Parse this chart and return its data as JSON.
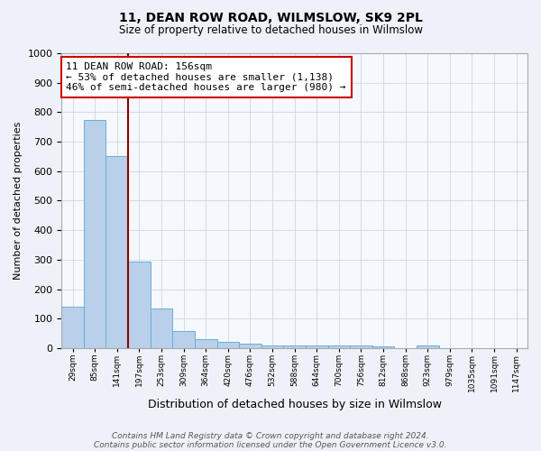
{
  "title": "11, DEAN ROW ROAD, WILMSLOW, SK9 2PL",
  "subtitle": "Size of property relative to detached houses in Wilmslow",
  "xlabel": "Distribution of detached houses by size in Wilmslow",
  "ylabel": "Number of detached properties",
  "footer1": "Contains HM Land Registry data © Crown copyright and database right 2024.",
  "footer2": "Contains public sector information licensed under the Open Government Licence v3.0.",
  "categories": [
    "29sqm",
    "85sqm",
    "141sqm",
    "197sqm",
    "253sqm",
    "309sqm",
    "364sqm",
    "420sqm",
    "476sqm",
    "532sqm",
    "588sqm",
    "644sqm",
    "700sqm",
    "756sqm",
    "812sqm",
    "868sqm",
    "923sqm",
    "979sqm",
    "1035sqm",
    "1091sqm",
    "1147sqm"
  ],
  "values": [
    140,
    775,
    650,
    295,
    135,
    57,
    30,
    20,
    15,
    8,
    10,
    8,
    10,
    8,
    7,
    0,
    10,
    0,
    0,
    0,
    0
  ],
  "bar_color": "#b8d0ea",
  "bar_edge_color": "#6aaed6",
  "property_line_x": 2.5,
  "property_line_color": "#8b0000",
  "annotation_text": "11 DEAN ROW ROAD: 156sqm\n← 53% of detached houses are smaller (1,138)\n46% of semi-detached houses are larger (980) →",
  "annotation_box_color": "#cc0000",
  "ylim": [
    0,
    1000
  ],
  "yticks": [
    0,
    100,
    200,
    300,
    400,
    500,
    600,
    700,
    800,
    900,
    1000
  ],
  "background_color": "#eef2f8",
  "plot_background": "#f5f8fc",
  "grid_color": "#c8d0dc"
}
